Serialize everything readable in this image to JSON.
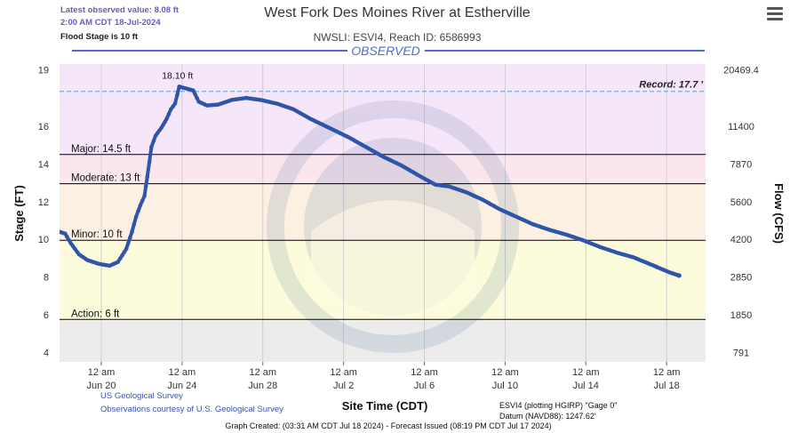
{
  "header": {
    "latest_value": "Latest observed value: 8.08 ft",
    "latest_time": "2:00 AM CDT 18-Jul-2024",
    "flood_stage": "Flood Stage is 10 ft",
    "title": "West Fork Des Moines River at Estherville",
    "subtitle": "NWSLI: ESVI4, Reach ID: 6586993",
    "observed_label": "OBSERVED"
  },
  "menu_icon": "hamburger-menu-icon",
  "chart_data": {
    "type": "line",
    "xlabel": "Site Time (CDT)",
    "ylabel": "Stage (FT)",
    "y2label": "Flow (CFS)",
    "ylim": [
      3.5,
      19.3
    ],
    "xlim": [
      0,
      23.2
    ],
    "y_ticks": [
      4,
      6,
      8,
      10,
      12,
      14,
      16,
      19
    ],
    "flow_ticks": [
      {
        "stage": 4,
        "label": "791"
      },
      {
        "stage": 6,
        "label": "1850"
      },
      {
        "stage": 8,
        "label": "2850"
      },
      {
        "stage": 10,
        "label": "4200"
      },
      {
        "stage": 12,
        "label": "5600"
      },
      {
        "stage": 14,
        "label": "7870"
      },
      {
        "stage": 16,
        "label": "11400"
      },
      {
        "stage": 19,
        "label": "20469.4"
      }
    ],
    "x_ticks": [
      {
        "x": 1.5,
        "time": "12 am",
        "date": "Jun 20"
      },
      {
        "x": 4.4,
        "time": "12 am",
        "date": "Jun 24"
      },
      {
        "x": 7.3,
        "time": "12 am",
        "date": "Jun 28"
      },
      {
        "x": 10.2,
        "time": "12 am",
        "date": "Jul 2"
      },
      {
        "x": 13.1,
        "time": "12 am",
        "date": "Jul 6"
      },
      {
        "x": 16.0,
        "time": "12 am",
        "date": "Jul 10"
      },
      {
        "x": 18.9,
        "time": "12 am",
        "date": "Jul 14"
      },
      {
        "x": 21.8,
        "time": "12 am",
        "date": "Jul 18"
      }
    ],
    "bands": [
      {
        "from": 3.5,
        "to": 5.7,
        "color": "#ececec"
      },
      {
        "from": 5.7,
        "to": 9.9,
        "color": "#fcfcdc"
      },
      {
        "from": 9.9,
        "to": 12.9,
        "color": "#fcf0e2"
      },
      {
        "from": 12.9,
        "to": 14.4,
        "color": "#fbe6ee"
      },
      {
        "from": 14.4,
        "to": 19.3,
        "color": "#f6e6fa"
      }
    ],
    "thresholds": [
      {
        "label": "Action: 6 ft",
        "stage": 5.75
      },
      {
        "label": "Minor: 10 ft",
        "stage": 9.95
      },
      {
        "label": "Moderate: 13 ft",
        "stage": 12.95
      },
      {
        "label": "Major: 14.5 ft",
        "stage": 14.5
      }
    ],
    "record": {
      "label": "Record: 17.7 '",
      "stage": 17.85
    },
    "peak": {
      "label": "18.10 ft",
      "x": 4.3,
      "y": 18.1
    },
    "series": [
      {
        "color": "#2f55a8",
        "points": [
          [
            0,
            10.4
          ],
          [
            0.2,
            10.3
          ],
          [
            0.4,
            9.8
          ],
          [
            0.7,
            9.2
          ],
          [
            1.0,
            8.9
          ],
          [
            1.4,
            8.7
          ],
          [
            1.8,
            8.6
          ],
          [
            2.1,
            8.8
          ],
          [
            2.4,
            9.5
          ],
          [
            2.6,
            10.4
          ],
          [
            2.75,
            11.2
          ],
          [
            2.9,
            11.8
          ],
          [
            3.05,
            12.3
          ],
          [
            3.15,
            13.3
          ],
          [
            3.3,
            14.9
          ],
          [
            3.45,
            15.5
          ],
          [
            3.65,
            15.9
          ],
          [
            3.85,
            16.4
          ],
          [
            4.0,
            16.9
          ],
          [
            4.15,
            17.2
          ],
          [
            4.3,
            18.1
          ],
          [
            4.8,
            17.9
          ],
          [
            5.0,
            17.3
          ],
          [
            5.3,
            17.1
          ],
          [
            5.7,
            17.15
          ],
          [
            6.2,
            17.4
          ],
          [
            6.7,
            17.5
          ],
          [
            7.2,
            17.4
          ],
          [
            7.8,
            17.2
          ],
          [
            8.4,
            16.9
          ],
          [
            9.0,
            16.4
          ],
          [
            9.7,
            15.9
          ],
          [
            10.4,
            15.4
          ],
          [
            11.0,
            14.9
          ],
          [
            11.6,
            14.4
          ],
          [
            12.3,
            13.9
          ],
          [
            13.0,
            13.3
          ],
          [
            13.5,
            12.9
          ],
          [
            14.0,
            12.8
          ],
          [
            14.6,
            12.5
          ],
          [
            15.2,
            12.1
          ],
          [
            15.8,
            11.6
          ],
          [
            16.4,
            11.2
          ],
          [
            17.0,
            10.8
          ],
          [
            17.6,
            10.5
          ],
          [
            18.2,
            10.25
          ],
          [
            18.8,
            9.95
          ],
          [
            19.4,
            9.6
          ],
          [
            20.0,
            9.3
          ],
          [
            20.6,
            9.05
          ],
          [
            21.1,
            8.75
          ],
          [
            21.5,
            8.5
          ],
          [
            21.9,
            8.25
          ],
          [
            22.25,
            8.08
          ]
        ]
      }
    ]
  },
  "footer": {
    "usgs": "US Geological Survey",
    "courtesy": "Observations courtesy of U.S. Geological Survey",
    "gauge_info": "ESVI4 (plotting HGIRP) \"Gage 0\"",
    "datum": "Datum (NAVD88): 1247.62'",
    "graph_created": "Graph Created: (03:31 AM CDT Jul 18 2024) - Forecast Issued (08:19 PM CDT Jul 17 2024)"
  }
}
